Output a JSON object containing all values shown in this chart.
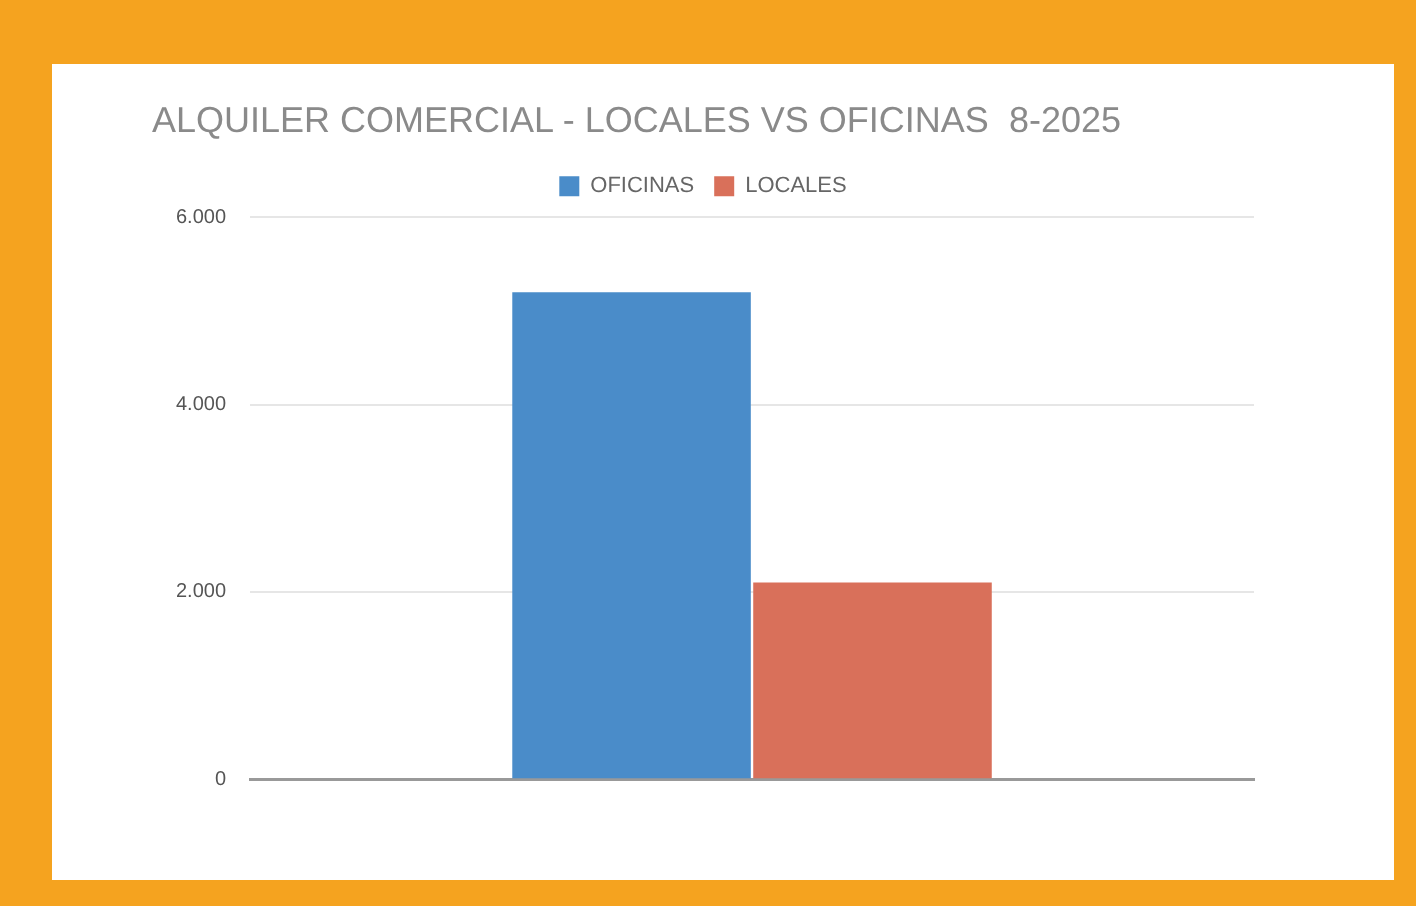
{
  "chart_data": {
    "type": "bar",
    "title": "ALQUILER COMERCIAL - LOCALES VS OFICINAS  8-2025",
    "categories": [
      null
    ],
    "series": [
      {
        "name": "OFICINAS",
        "color": "#4a8cc9",
        "values": [
          5200
        ]
      },
      {
        "name": "LOCALES",
        "color": "#d9705a",
        "values": [
          2100
        ]
      }
    ],
    "ylim": [
      0,
      6000
    ],
    "yticks": [
      0,
      {
        "value": 2000,
        "label": "2.000"
      },
      {
        "value": 4000,
        "label": "4.000"
      },
      {
        "value": 6000,
        "label": "6.000"
      }
    ],
    "grid": "y",
    "legend": "top"
  }
}
